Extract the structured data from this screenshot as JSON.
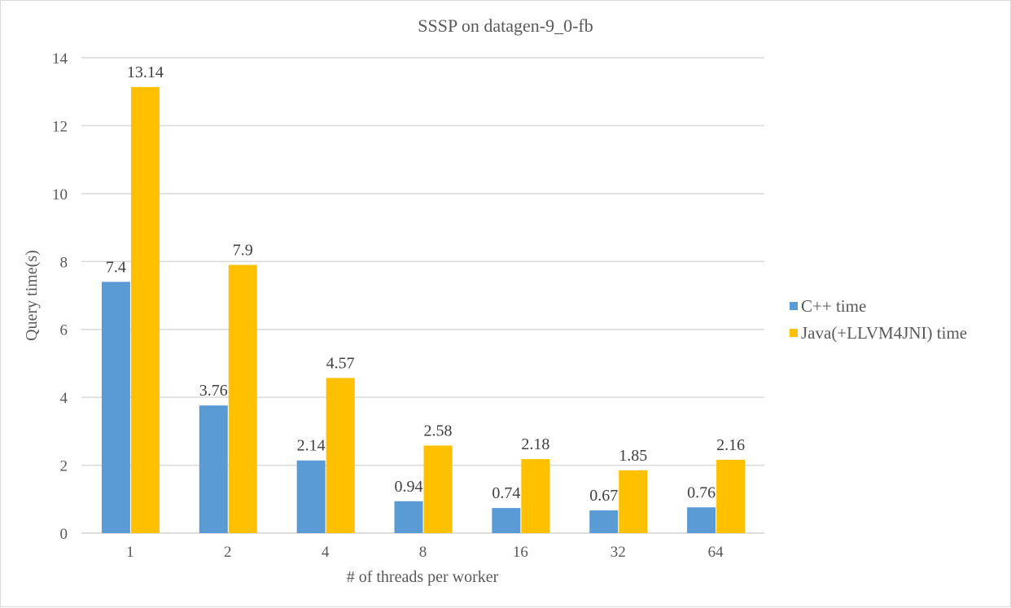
{
  "chart_data": {
    "type": "bar",
    "title": "SSSP on datagen-9_0-fb",
    "xlabel": "# of  threads per worker",
    "ylabel": "Query time(s)",
    "categories": [
      "1",
      "2",
      "4",
      "8",
      "16",
      "32",
      "64"
    ],
    "series": [
      {
        "name": "C++ time",
        "color": "#5b9bd5",
        "values": [
          7.4,
          3.76,
          2.14,
          0.94,
          0.74,
          0.67,
          0.76
        ]
      },
      {
        "name": "Java(+LLVM4JNI) time",
        "color": "#ffc000",
        "values": [
          13.14,
          7.9,
          4.57,
          2.58,
          2.18,
          1.85,
          2.16
        ]
      }
    ],
    "data_labels": [
      [
        "7.4",
        "3.76",
        "2.14",
        "0.94",
        "0.74",
        "0.67",
        "0.76"
      ],
      [
        "13.14",
        "7.9",
        "4.57",
        "2.58",
        "2.18",
        "1.85",
        "2.16"
      ]
    ],
    "ylim": [
      0,
      14
    ],
    "yticks": [
      "0",
      "2",
      "4",
      "6",
      "8",
      "10",
      "12",
      "14"
    ],
    "grid": true,
    "legend": "right"
  }
}
